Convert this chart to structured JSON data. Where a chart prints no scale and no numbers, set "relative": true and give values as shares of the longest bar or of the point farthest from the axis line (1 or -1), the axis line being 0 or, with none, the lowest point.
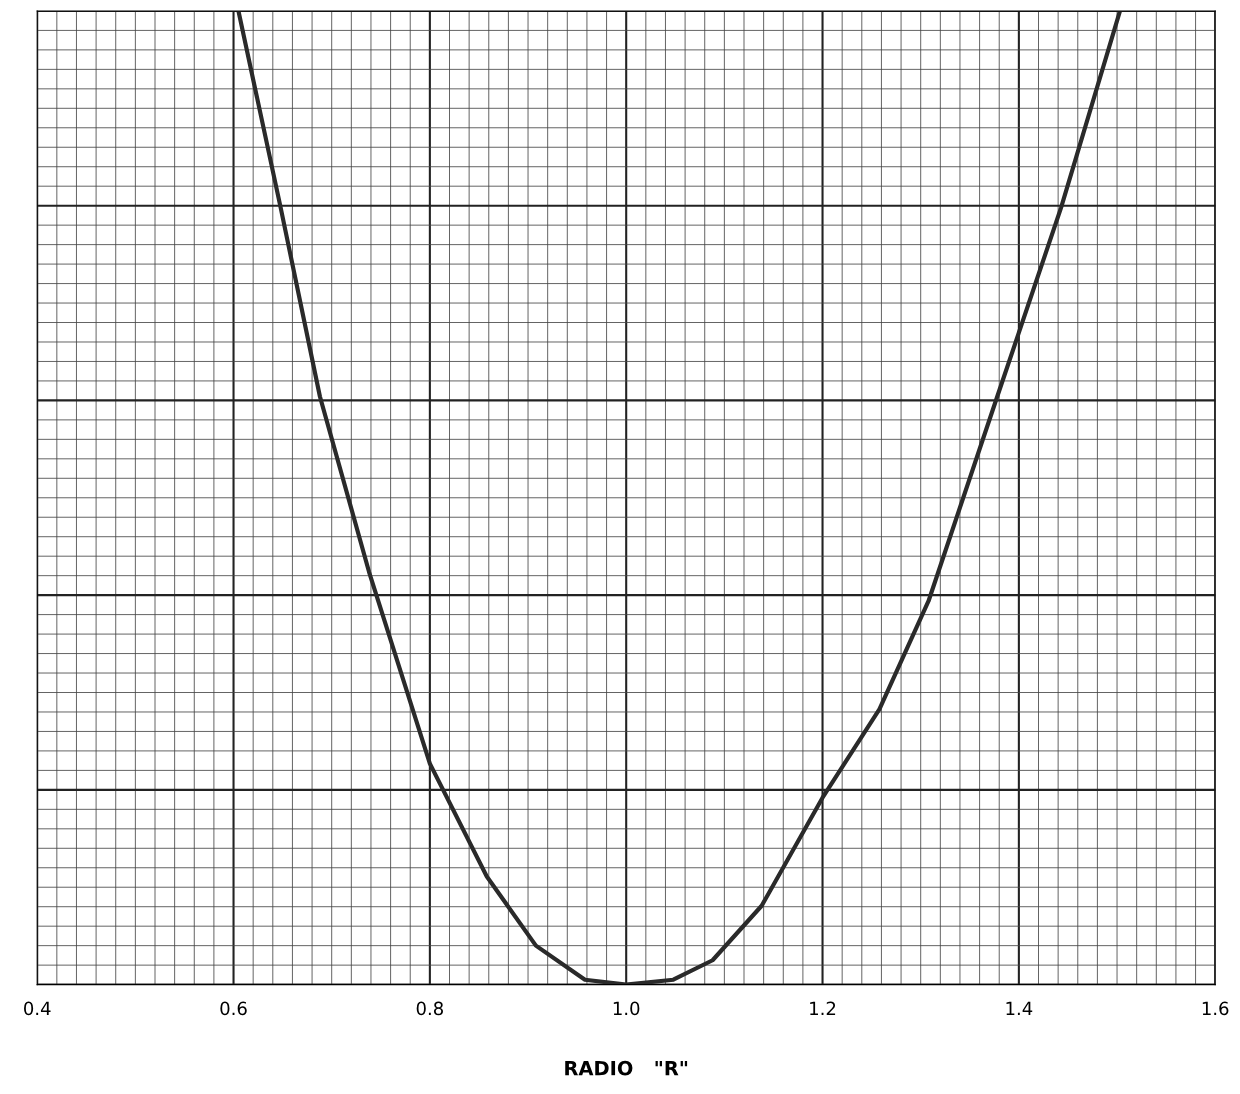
{
  "chart_data": {
    "type": "line",
    "relative": true,
    "xlabel": "RADIO   \"R\"",
    "x": [
      0.605,
      0.648,
      0.688,
      0.738,
      0.8,
      0.858,
      0.908,
      0.958,
      1.0,
      1.048,
      1.088,
      1.138,
      1.2,
      1.258,
      1.308,
      1.378,
      1.443,
      1.503
    ],
    "series": [
      {
        "color": "#2a2a2a",
        "values": [
          1.0,
          0.798,
          0.604,
          0.424,
          0.227,
          0.111,
          0.04,
          0.005,
          0,
          0.005,
          0.025,
          0.081,
          0.192,
          0.283,
          0.394,
          0.604,
          0.798,
          1.0
        ]
      }
    ],
    "xlim": [
      0.4,
      1.6
    ],
    "xticks": [
      0.4,
      0.6,
      0.8,
      {
        "value": 1,
        "label": "1.0"
      },
      1.2,
      1.4,
      1.6
    ],
    "grid": true,
    "marker": "none",
    "line_style": "solid",
    "tick_labels": "x"
  }
}
